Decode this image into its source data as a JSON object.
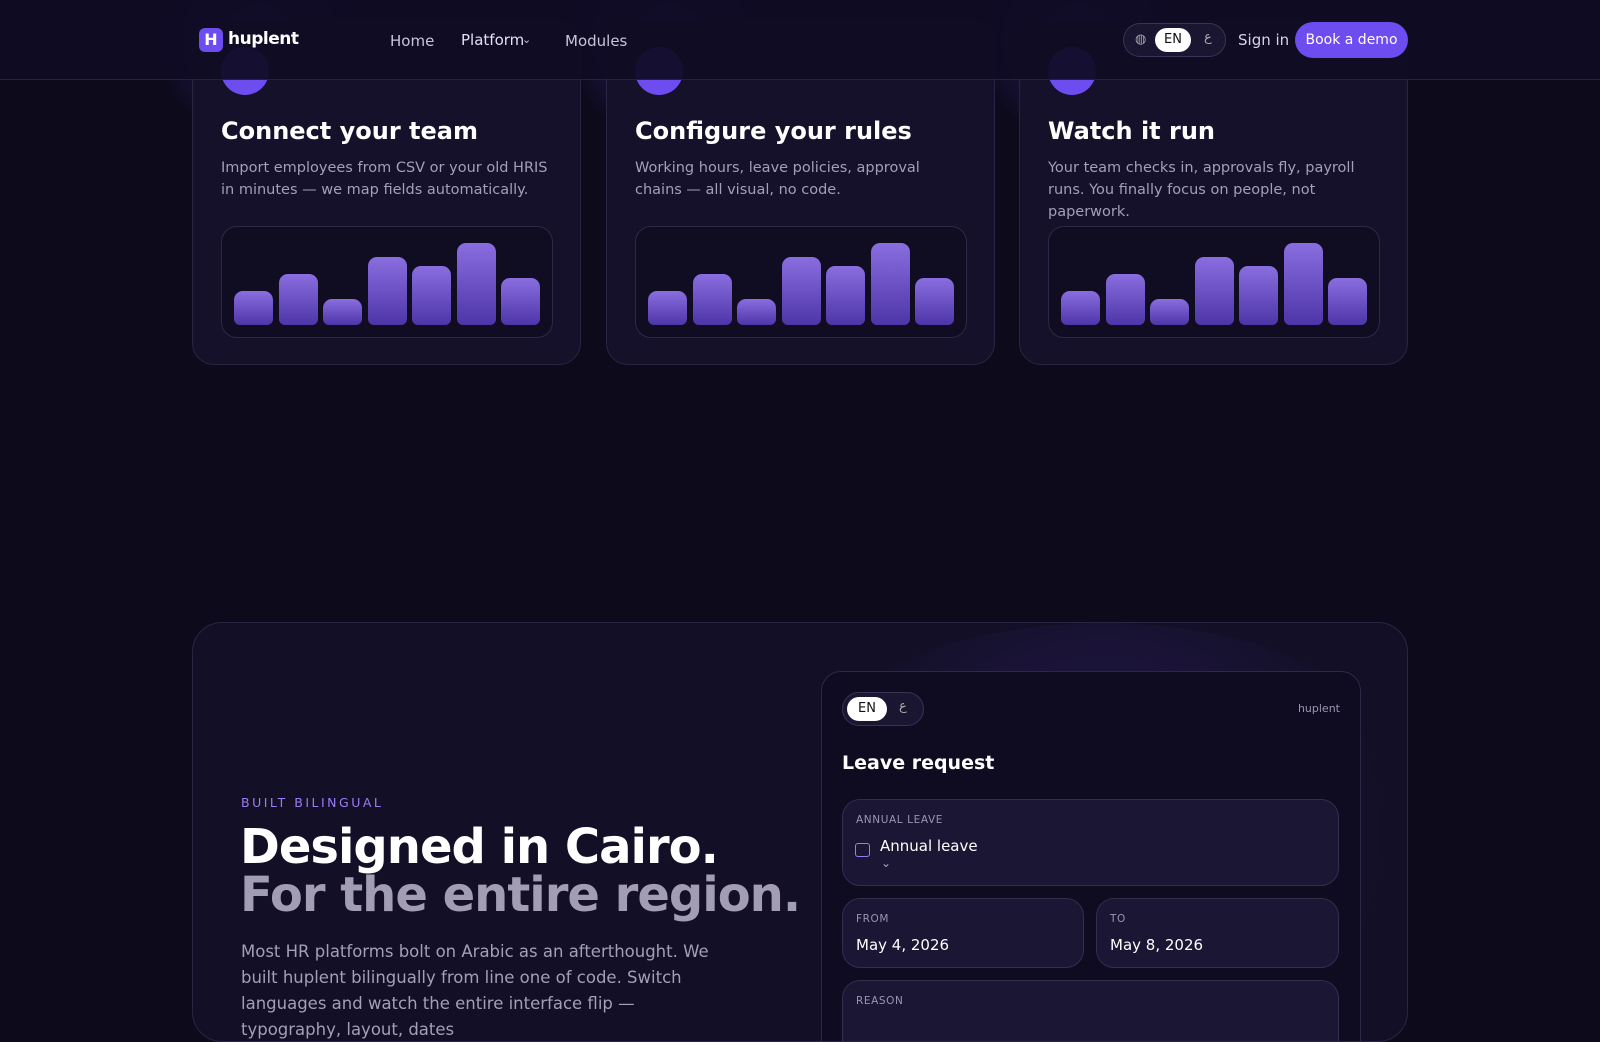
{
  "nav": {
    "logo": "huplent",
    "links": [
      "Home",
      "Platform",
      "Modules"
    ],
    "lang": {
      "active": "EN",
      "other": "ع"
    },
    "sign_in": "Sign in",
    "cta": "Book a demo"
  },
  "steps": [
    {
      "title": "Connect your team",
      "description": "Import employees from CSV or your old HRIS in minutes — we map fields automatically."
    },
    {
      "title": "Configure your rules",
      "description": "Working hours, leave policies, approval chains — all visual, no code."
    },
    {
      "title": "Watch it run",
      "description": "Your team checks in, approvals fly, payroll runs. You finally focus on people, not paperwork."
    }
  ],
  "bilingual": {
    "eyebrow": "BUILT BILINGUAL",
    "headline_1": "Designed in Cairo.",
    "headline_2": "For the entire region.",
    "body": "Most HR platforms bolt on Arabic as an afterthought. We built huplent bilingually from line one of code. Switch languages and watch the entire interface flip — typography, layout, dates",
    "form": {
      "lang": {
        "active": "EN",
        "other": "ع"
      },
      "brand": "huplent",
      "title": "Leave request",
      "type_label": "ANNUAL LEAVE",
      "type_value": "Annual leave",
      "from_label": "FROM",
      "from_value": "May 4, 2026",
      "to_label": "TO",
      "to_value": "May 8, 2026",
      "reason_label": "REASON"
    }
  }
}
